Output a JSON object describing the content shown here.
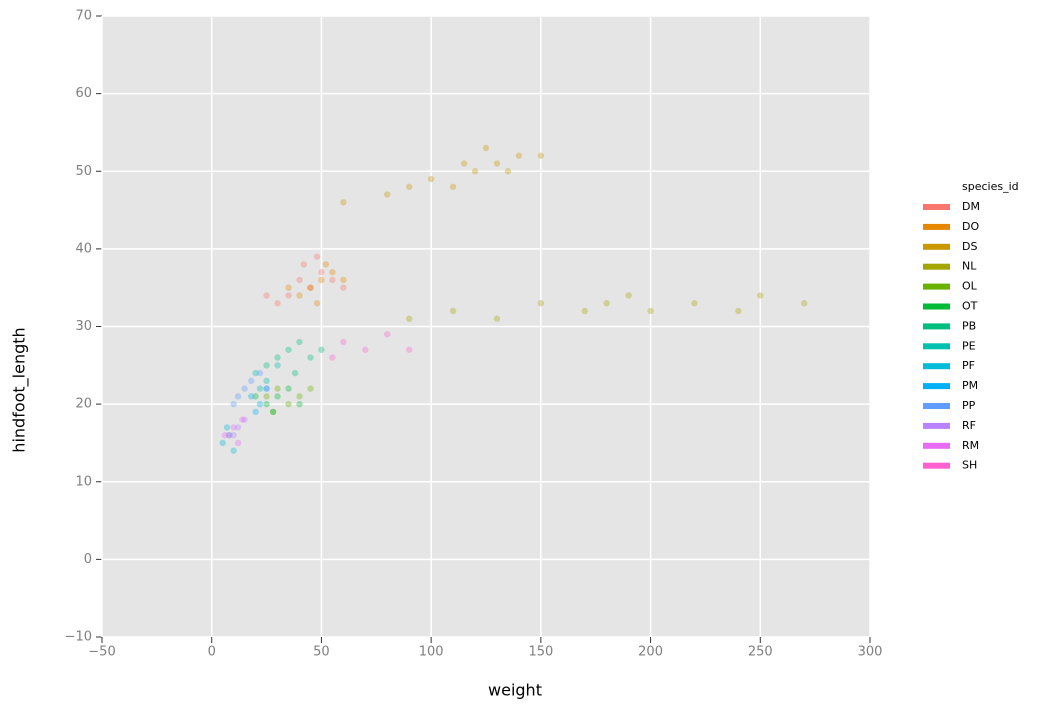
{
  "chart_data": {
    "type": "scatter",
    "x_label": "weight",
    "y_label": "hindfoot_length",
    "legend_title": "species_id",
    "xlim": [
      -50,
      300
    ],
    "ylim": [
      -10,
      70
    ],
    "xticks": [
      {
        "value": -50,
        "label": "−50"
      },
      0,
      50,
      100,
      150,
      200,
      250,
      300
    ],
    "yticks": [
      {
        "value": -10,
        "label": "−10"
      },
      0,
      10,
      20,
      30,
      40,
      50,
      60,
      70
    ],
    "grid": true,
    "alpha": 0.35,
    "legend": "right",
    "series": [
      {
        "name": "DM",
        "color": "#f8766d",
        "x": [
          40,
          45,
          50,
          35,
          55,
          30,
          60,
          42,
          48,
          25
        ],
        "y": [
          36,
          35,
          37,
          34,
          36,
          33,
          35,
          38,
          39,
          34
        ]
      },
      {
        "name": "DO",
        "color": "#e58700",
        "x": [
          45,
          50,
          55,
          40,
          60,
          35,
          48,
          52
        ],
        "y": [
          35,
          36,
          37,
          34,
          36,
          35,
          33,
          38
        ]
      },
      {
        "name": "DS",
        "color": "#c99800",
        "x": [
          100,
          120,
          130,
          140,
          110,
          125,
          150,
          90,
          80,
          135,
          115,
          60
        ],
        "y": [
          49,
          50,
          51,
          52,
          48,
          53,
          52,
          48,
          47,
          50,
          51,
          46
        ]
      },
      {
        "name": "NL",
        "color": "#a3a500",
        "x": [
          110,
          150,
          180,
          200,
          220,
          250,
          130,
          170,
          190,
          240,
          270,
          90
        ],
        "y": [
          32,
          33,
          33,
          32,
          33,
          34,
          31,
          32,
          34,
          32,
          33,
          31
        ]
      },
      {
        "name": "OL",
        "color": "#6bb100",
        "x": [
          25,
          30,
          35,
          40,
          28,
          45
        ],
        "y": [
          21,
          22,
          20,
          21,
          19,
          22
        ]
      },
      {
        "name": "OT",
        "color": "#00ba38",
        "x": [
          20,
          25,
          30,
          35,
          28,
          40
        ],
        "y": [
          21,
          20,
          21,
          22,
          19,
          20
        ]
      },
      {
        "name": "PB",
        "color": "#00bf7d",
        "x": [
          30,
          35,
          40,
          45,
          25,
          50,
          38
        ],
        "y": [
          26,
          27,
          28,
          26,
          25,
          27,
          24
        ]
      },
      {
        "name": "PE",
        "color": "#00c0af",
        "x": [
          20,
          25,
          30,
          22
        ],
        "y": [
          24,
          23,
          25,
          22
        ]
      },
      {
        "name": "PF",
        "color": "#00bcd8",
        "x": [
          5,
          8,
          10,
          7
        ],
        "y": [
          15,
          16,
          14,
          17
        ]
      },
      {
        "name": "PM",
        "color": "#00b0f6",
        "x": [
          18,
          22,
          25,
          20
        ],
        "y": [
          21,
          20,
          22,
          19
        ]
      },
      {
        "name": "PP",
        "color": "#619cff",
        "x": [
          15,
          18,
          22,
          12,
          25,
          10
        ],
        "y": [
          22,
          23,
          24,
          21,
          22,
          20
        ]
      },
      {
        "name": "RF",
        "color": "#b983ff",
        "x": [
          12,
          15,
          10
        ],
        "y": [
          17,
          18,
          16
        ]
      },
      {
        "name": "RM",
        "color": "#e76bf3",
        "x": [
          8,
          10,
          12,
          6,
          14
        ],
        "y": [
          16,
          17,
          15,
          16,
          18
        ]
      },
      {
        "name": "SH",
        "color": "#fd61d1",
        "x": [
          60,
          70,
          80,
          55,
          90
        ],
        "y": [
          28,
          27,
          29,
          26,
          27
        ]
      }
    ]
  }
}
